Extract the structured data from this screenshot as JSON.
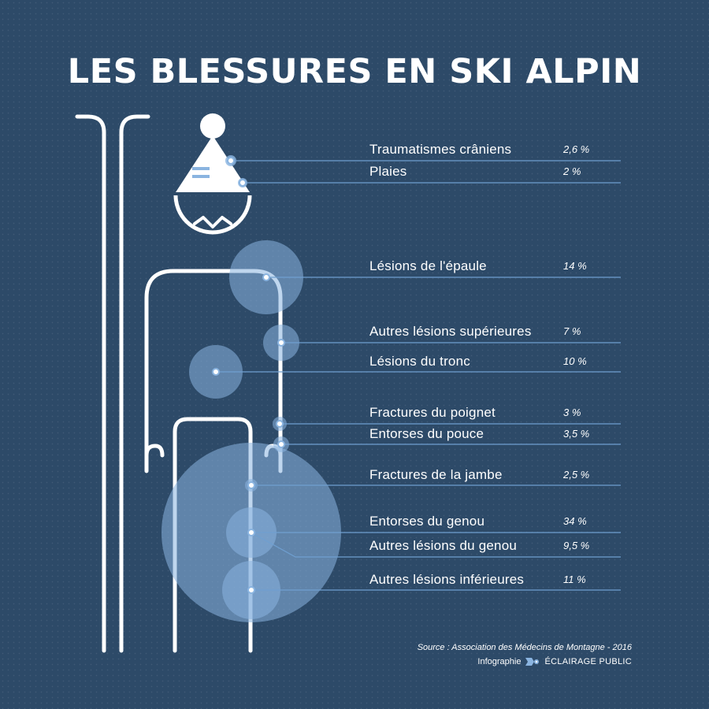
{
  "title": "LES BLESSURES EN SKI ALPIN",
  "injuries": [
    {
      "label": "Traumatismes crâniens",
      "value": "2,6 %"
    },
    {
      "label": "Plaies",
      "value": "2 %"
    },
    {
      "label": "Lésions de l'épaule",
      "value": "14 %"
    },
    {
      "label": "Autres lésions supérieures",
      "value": "7 %"
    },
    {
      "label": "Lésions du tronc",
      "value": "10 %"
    },
    {
      "label": "Fractures du poignet",
      "value": "3 %"
    },
    {
      "label": "Entorses du pouce",
      "value": "3,5 %"
    },
    {
      "label": "Fractures de la jambe",
      "value": "2,5 %"
    },
    {
      "label": "Entorses du genou",
      "value": "34 %"
    },
    {
      "label": "Autres lésions du genou",
      "value": "9,5 %"
    },
    {
      "label": "Autres lésions inférieures",
      "value": "11 %"
    }
  ],
  "source": "Source : Association des Médecins de Montagne - 2016",
  "credit": {
    "prefix": "Infographie",
    "brand": "ÉCLAIRAGE PUBLIC"
  },
  "colors": {
    "background": "#2d4a68",
    "bubble": "#8ab4e0",
    "line": "#6f9fd0",
    "figure": "#ffffff"
  }
}
